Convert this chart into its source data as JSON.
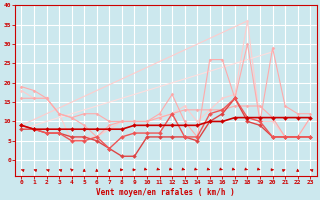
{
  "xlabel": "Vent moyen/en rafales ( km/h )",
  "background_color": "#cce8ee",
  "grid_color": "#ffffff",
  "xlim": [
    -0.5,
    23.5
  ],
  "ylim": [
    0,
    40
  ],
  "yticks": [
    0,
    5,
    10,
    15,
    20,
    25,
    30,
    35,
    40
  ],
  "xticks": [
    0,
    1,
    2,
    3,
    4,
    5,
    6,
    7,
    8,
    9,
    10,
    11,
    12,
    13,
    14,
    15,
    16,
    17,
    18,
    19,
    20,
    21,
    22,
    23
  ],
  "lines": [
    {
      "x": [
        0,
        1,
        2,
        3,
        4,
        5,
        6,
        7,
        8,
        9,
        10,
        11,
        12,
        13,
        14,
        15,
        16,
        17,
        18,
        19,
        20,
        21,
        22,
        23
      ],
      "y": [
        9,
        8,
        8,
        8,
        8,
        8,
        8,
        8,
        8,
        9,
        9,
        9,
        9,
        9,
        9,
        10,
        10,
        11,
        11,
        11,
        11,
        11,
        11,
        11
      ],
      "color": "#cc0000",
      "lw": 1.2,
      "marker": "D",
      "ms": 2.0,
      "zorder": 5
    },
    {
      "x": [
        0,
        1,
        2,
        3,
        4,
        5,
        6,
        7,
        8,
        9,
        10,
        11,
        12,
        13,
        14,
        15,
        16,
        17,
        18,
        19,
        20,
        21,
        22,
        23
      ],
      "y": [
        8,
        8,
        7,
        7,
        6,
        6,
        5,
        3,
        1,
        1,
        6,
        6,
        6,
        6,
        5,
        10,
        12,
        16,
        10,
        9,
        6,
        6,
        6,
        6
      ],
      "color": "#dd4444",
      "lw": 1.0,
      "marker": "D",
      "ms": 2.0,
      "zorder": 4
    },
    {
      "x": [
        0,
        1,
        2,
        3,
        4,
        5,
        6,
        7,
        8,
        9,
        10,
        11,
        12,
        13,
        14,
        15,
        16,
        17,
        18,
        19,
        20,
        21,
        22,
        23
      ],
      "y": [
        9,
        8,
        7,
        7,
        5,
        5,
        6,
        3,
        6,
        7,
        7,
        7,
        12,
        6,
        6,
        12,
        13,
        16,
        11,
        10,
        6,
        6,
        6,
        6
      ],
      "color": "#ee5555",
      "lw": 1.0,
      "marker": "D",
      "ms": 2.0,
      "zorder": 4
    },
    {
      "x": [
        0,
        1,
        2,
        3,
        4,
        5,
        6,
        7,
        8,
        9,
        10,
        11,
        12,
        13,
        14,
        15,
        16,
        17,
        18,
        19,
        20,
        21,
        22,
        23
      ],
      "y": [
        16,
        16,
        16,
        12,
        11,
        12,
        12,
        10,
        10,
        10,
        10,
        11,
        12,
        13,
        13,
        13,
        13,
        14,
        14,
        14,
        11,
        6,
        6,
        11
      ],
      "color": "#ffaaaa",
      "lw": 0.8,
      "marker": "D",
      "ms": 1.5,
      "zorder": 3
    },
    {
      "x": [
        0,
        1,
        2,
        3,
        4,
        5,
        6,
        7,
        8,
        9,
        10,
        11,
        12,
        13,
        14,
        15,
        16,
        17,
        18,
        19,
        20,
        21,
        22,
        23
      ],
      "y": [
        19,
        18,
        16,
        12,
        11,
        9,
        6,
        9,
        10,
        10,
        10,
        12,
        17,
        10,
        6,
        26,
        26,
        16,
        30,
        10,
        29,
        14,
        12,
        12
      ],
      "color": "#ffaaaa",
      "lw": 0.8,
      "marker": "D",
      "ms": 1.5,
      "zorder": 3
    },
    {
      "x": [
        0,
        1,
        2,
        3,
        4,
        5,
        6,
        7,
        8,
        9,
        10,
        11,
        12,
        13,
        14,
        15,
        16,
        17,
        18,
        19,
        20,
        21,
        22,
        23
      ],
      "y": [
        18,
        16,
        16,
        12,
        5,
        6,
        6,
        8,
        10,
        10,
        10,
        11,
        12,
        14,
        10,
        13,
        16,
        17,
        36,
        10,
        10,
        6,
        6,
        11
      ],
      "color": "#ffcccc",
      "lw": 0.8,
      "marker": "D",
      "ms": 1.5,
      "zorder": 2
    },
    {
      "x": [
        0,
        18
      ],
      "y": [
        9,
        36
      ],
      "color": "#ffcccc",
      "lw": 0.8,
      "marker": null,
      "ms": 0,
      "zorder": 2
    },
    {
      "x": [
        0,
        20
      ],
      "y": [
        8,
        28
      ],
      "color": "#ffdddd",
      "lw": 0.8,
      "marker": null,
      "ms": 0,
      "zorder": 2
    }
  ],
  "wind_arrows": {
    "x": [
      0,
      1,
      2,
      3,
      4,
      5,
      6,
      7,
      8,
      9,
      10,
      11,
      12,
      13,
      14,
      15,
      16,
      17,
      18,
      19,
      20,
      21,
      22,
      23
    ],
    "angles": [
      225,
      225,
      225,
      225,
      200,
      180,
      180,
      180,
      90,
      90,
      45,
      45,
      45,
      45,
      45,
      45,
      45,
      45,
      45,
      45,
      90,
      135,
      180,
      225
    ]
  }
}
